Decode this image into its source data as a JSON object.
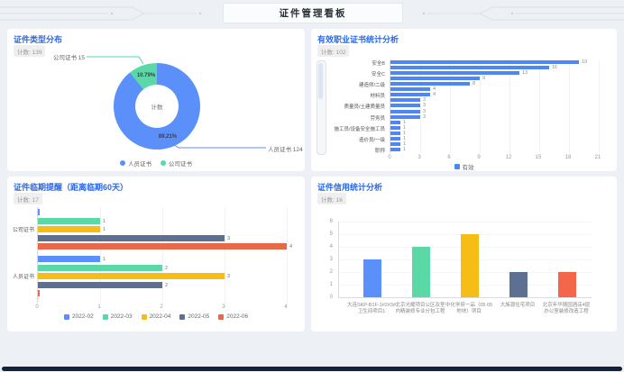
{
  "header": {
    "title": "证件管理看板"
  },
  "panels": [
    {
      "id": "type-dist",
      "title": "证件类型分布",
      "badge": "计数: 139"
    },
    {
      "id": "valid-cert",
      "title": "有效职业证书统计分析",
      "badge": "计数: 102"
    },
    {
      "id": "expiry",
      "title": "证件临期提醒（距离临期60天）",
      "badge": "计数: 17"
    },
    {
      "id": "credit",
      "title": "证件信用统计分析",
      "badge": "计数: 16"
    }
  ],
  "chart_data": [
    {
      "type": "pie",
      "title": "证件类型分布",
      "center_label": "计数",
      "total": 139,
      "slices": [
        {
          "name": "人员证书",
          "value": 124,
          "pct_label": "89.21%",
          "color": "#5B8FF9",
          "callout": "人员证书 124"
        },
        {
          "name": "公司证书",
          "value": 15,
          "pct_label": "10.79%",
          "color": "#5AD8A6",
          "callout": "公司证书 15"
        }
      ],
      "legend": [
        "人员证书",
        "公司证书"
      ],
      "legend_position": "bottom"
    },
    {
      "type": "bar",
      "orientation": "horizontal",
      "title": "有效职业证书统计分析",
      "categories": [
        "安全B",
        "",
        "安全C",
        "",
        "建造师/二级",
        "",
        "材料员",
        "",
        "质量员/土建质量员",
        "",
        "劳务员",
        "",
        "施工员/设备安全施工员",
        "",
        "造价员/一级",
        "",
        "职称"
      ],
      "values": [
        19,
        16,
        13,
        9,
        8,
        4,
        4,
        3,
        3,
        3,
        3,
        1,
        1,
        1,
        1,
        1,
        1
      ],
      "bar_color": "#4E86F4",
      "xticks": [
        "0",
        "3",
        "6",
        "9",
        "12",
        "15",
        "18",
        "21"
      ],
      "xlim": [
        0,
        21
      ],
      "legend": [
        "有效"
      ],
      "has_datazoom_slider": true,
      "grid": true
    },
    {
      "type": "bar",
      "orientation": "horizontal-grouped",
      "title": "证件临期提醒（距离临期60天）",
      "categories": [
        "公司证书",
        "人员证书"
      ],
      "series": [
        {
          "name": "2022-02",
          "color": "#5B8FF9",
          "values": [
            0,
            1
          ]
        },
        {
          "name": "2022-03",
          "color": "#5AD8A6",
          "values": [
            1,
            2
          ]
        },
        {
          "name": "2022-04",
          "color": "#F6BD16",
          "values": [
            1,
            3
          ]
        },
        {
          "name": "2022-05",
          "color": "#5D7092",
          "values": [
            3,
            2
          ]
        },
        {
          "name": "2022-06",
          "color": "#E8684A",
          "values": [
            4,
            0
          ]
        }
      ],
      "xticks": [
        "0",
        "1",
        "2",
        "3",
        "4"
      ],
      "xlim": [
        0,
        4
      ],
      "legend_position": "bottom",
      "grid": true
    },
    {
      "type": "bar",
      "orientation": "vertical",
      "title": "证件信用统计分析",
      "categories": [
        "大连SKP-B1F-1#2#3#卫生间项目1",
        "北京光耀项目公区及室内精装修专业分包工程",
        "中化学府一品（05 05地块）项目",
        "大族源住宅项目",
        "北京年华随园酒店4层办公室装修改造工程"
      ],
      "values": [
        3,
        4,
        5,
        2,
        2
      ],
      "colors": [
        "#5B8FF9",
        "#5AD8A6",
        "#F6BD16",
        "#5D7092",
        "#F4664A"
      ],
      "yticks": [
        "0",
        "1",
        "2",
        "3",
        "4",
        "5",
        "6"
      ],
      "ylim": [
        0,
        6
      ],
      "grid": true
    }
  ]
}
